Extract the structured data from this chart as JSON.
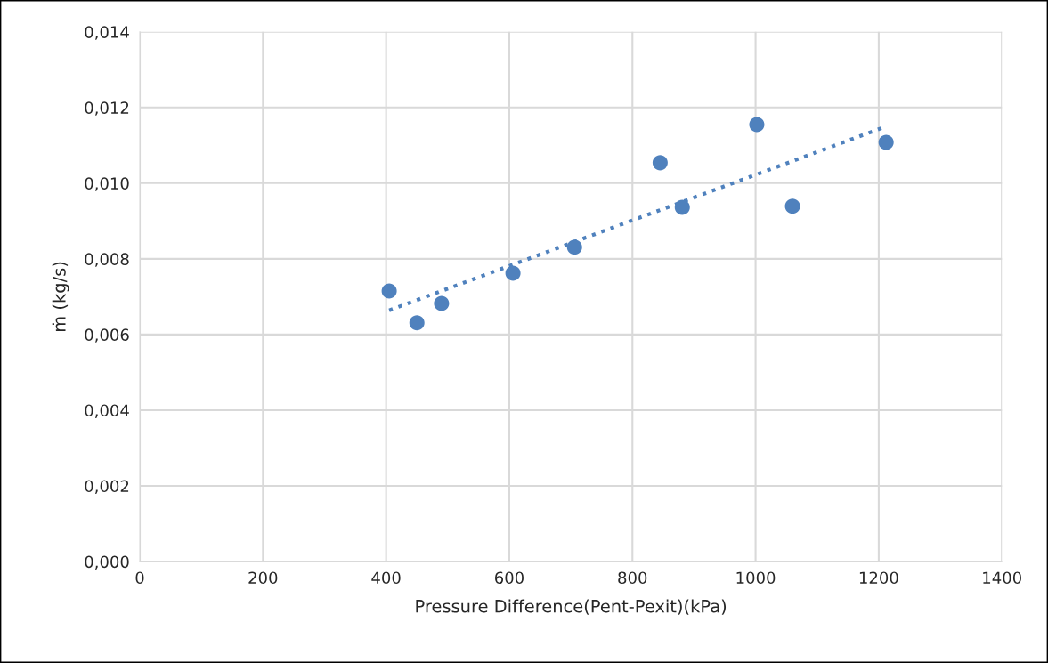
{
  "chart_data": {
    "type": "scatter",
    "xlabel": "Pressure Difference(Pent-Pexit)(kPa)",
    "ylabel": "ṁ (kg/s)",
    "series": [
      {
        "color": "#4f81bd",
        "marker": "circle",
        "x": [
          405,
          450,
          490,
          606,
          706,
          845,
          881,
          1002,
          1060,
          1212
        ],
        "values": [
          0.00715,
          0.00631,
          0.00682,
          0.00762,
          0.00831,
          0.01054,
          0.00936,
          0.01155,
          0.00939,
          0.01108
        ]
      },
      {
        "type": "line",
        "color": "#4f81bd",
        "line_style": "dotted",
        "marker": "none",
        "x": [
          405,
          1209
        ],
        "values": [
          0.00664,
          0.01148
        ]
      }
    ],
    "xlim": [
      0,
      1400
    ],
    "xticks": [
      0,
      200,
      400,
      600,
      800,
      1000,
      1200,
      1400
    ],
    "ylim": [
      0,
      0.014
    ],
    "yticks": [
      {
        "value": 0,
        "label": "0,000"
      },
      {
        "value": 0.002,
        "label": "0,002"
      },
      {
        "value": 0.004,
        "label": "0,004"
      },
      {
        "value": 0.006,
        "label": "0,006"
      },
      {
        "value": 0.008,
        "label": "0,008"
      },
      {
        "value": 0.01,
        "label": "0,010"
      },
      {
        "value": 0.012,
        "label": "0,012"
      },
      {
        "value": 0.014,
        "label": "0,014"
      }
    ],
    "grid": true,
    "legend": false
  }
}
